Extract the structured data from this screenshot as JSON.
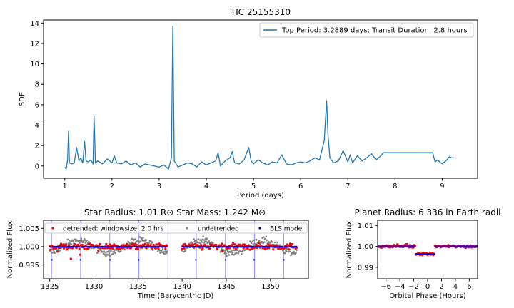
{
  "chart_data": [
    {
      "type": "line",
      "title": "TIC 25155310",
      "xlabel": "Period (days)",
      "ylabel": "SDE",
      "xlim": [
        0.55,
        9.75
      ],
      "ylim": [
        -1.2,
        14.3
      ],
      "xticks": [
        1,
        2,
        3,
        4,
        5,
        6,
        7,
        8,
        9
      ],
      "yticks": [
        0,
        2,
        4,
        6,
        8,
        10,
        12,
        14
      ],
      "grid": false,
      "legend_position": "top-right",
      "colors": {
        "series": "#1f77b4"
      },
      "series": [
        {
          "name": "Top Period: 3.2889 days; Transit Duration: 2.8 hours",
          "x": [
            1.0,
            1.03,
            1.06,
            1.08,
            1.1,
            1.15,
            1.2,
            1.25,
            1.3,
            1.34,
            1.38,
            1.42,
            1.45,
            1.5,
            1.55,
            1.6,
            1.62,
            1.65,
            1.7,
            1.8,
            1.9,
            2.0,
            2.05,
            2.1,
            2.2,
            2.3,
            2.4,
            2.5,
            2.6,
            2.7,
            2.8,
            2.9,
            3.0,
            3.1,
            3.2,
            3.26,
            3.29,
            3.32,
            3.4,
            3.5,
            3.6,
            3.7,
            3.8,
            3.9,
            4.0,
            4.1,
            4.2,
            4.25,
            4.3,
            4.4,
            4.5,
            4.55,
            4.6,
            4.7,
            4.8,
            4.9,
            4.95,
            5.0,
            5.1,
            5.2,
            5.3,
            5.4,
            5.5,
            5.6,
            5.7,
            5.8,
            5.9,
            6.0,
            6.1,
            6.2,
            6.3,
            6.4,
            6.5,
            6.55,
            6.58,
            6.62,
            6.7,
            6.8,
            6.9,
            7.0,
            7.05,
            7.1,
            7.2,
            7.3,
            7.4,
            7.5,
            7.6,
            7.7,
            7.75,
            7.8,
            8.0,
            8.2,
            8.4,
            8.6,
            8.8,
            8.82,
            8.85,
            8.9,
            9.0,
            9.1,
            9.15,
            9.2,
            9.25
          ],
          "values": [
            -0.1,
            -0.3,
            0.6,
            3.4,
            0.3,
            0.2,
            0.3,
            1.8,
            0.5,
            0.8,
            0.3,
            2.4,
            0.5,
            0.4,
            0.6,
            0.2,
            4.9,
            0.3,
            0.5,
            0.2,
            0.7,
            0.3,
            1.0,
            0.3,
            0.2,
            0.5,
            0.1,
            0.3,
            -0.1,
            0.2,
            0.1,
            0.0,
            -0.1,
            0.1,
            -0.3,
            0.8,
            13.7,
            0.5,
            -0.1,
            0.1,
            0.3,
            0.2,
            -0.1,
            0.4,
            0.1,
            0.3,
            0.5,
            1.3,
            0.0,
            0.5,
            0.8,
            1.4,
            0.3,
            0.2,
            0.6,
            1.8,
            0.5,
            0.2,
            0.6,
            0.3,
            0.1,
            0.4,
            0.3,
            1.1,
            0.2,
            0.1,
            0.3,
            0.4,
            0.3,
            0.5,
            0.8,
            0.6,
            2.5,
            6.4,
            3.0,
            0.8,
            0.3,
            0.5,
            1.5,
            0.4,
            1.1,
            0.3,
            1.0,
            0.5,
            0.8,
            1.2,
            0.6,
            1.0,
            1.3,
            1.3,
            1.3,
            1.3,
            1.3,
            1.3,
            1.3,
            0.9,
            0.4,
            0.6,
            0.2,
            0.6,
            0.9,
            0.8,
            0.8
          ]
        }
      ]
    },
    {
      "type": "scatter",
      "title": "Star Radius: 1.01 R⊙   Star Mass: 1.242 M⊙",
      "xlabel": "Time (Barycentric JD)",
      "ylabel": "Normalized Flux",
      "xlim": [
        1324.3,
        1354.3
      ],
      "ylim": [
        0.9912,
        1.0072
      ],
      "xticks": [
        1325,
        1330,
        1335,
        1340,
        1345,
        1350
      ],
      "yticks": [
        0.995,
        1.0,
        1.005
      ],
      "ytick_labels": [
        "0.995",
        "1.000",
        "1.005"
      ],
      "legend_position": "top",
      "colors": {
        "detrended": "#ff0000",
        "undetrended": "#808080",
        "model": "#0000ff",
        "transit_lines": "#9999ff"
      },
      "segments": [
        [
          1325.0,
          1338.3
        ],
        [
          1340.0,
          1353.0
        ]
      ],
      "transit_times": [
        1325.2,
        1328.5,
        1331.8,
        1335.1,
        1338.4,
        1341.6,
        1344.9,
        1348.2,
        1351.5
      ],
      "series": [
        {
          "name": "detrended: windowsize: 2.0 hrs"
        },
        {
          "name": "undetrended"
        },
        {
          "name": "BLS model"
        }
      ]
    },
    {
      "type": "scatter",
      "title": "Planet Radius: 6.336 in Earth radii",
      "xlabel": "Orbital Phase (Hours)",
      "ylabel": "Normalized Flux",
      "xlim": [
        -7.2,
        7.2
      ],
      "ylim": [
        0.9845,
        1.0125
      ],
      "xticks": [
        -6,
        -4,
        -2,
        0,
        2,
        4,
        6
      ],
      "xtick_labels": [
        "−6",
        "−4",
        "−2",
        "0",
        "2",
        "4",
        "6"
      ],
      "yticks": [
        0.99,
        1.0,
        1.01
      ],
      "ytick_labels": [
        "0.99",
        "1.00",
        "1.01"
      ],
      "colors": {
        "folded": "#ff0000",
        "model": "#0000ff"
      },
      "transit_depth": 0.0036,
      "transit_duration_hours": 2.8
    }
  ]
}
